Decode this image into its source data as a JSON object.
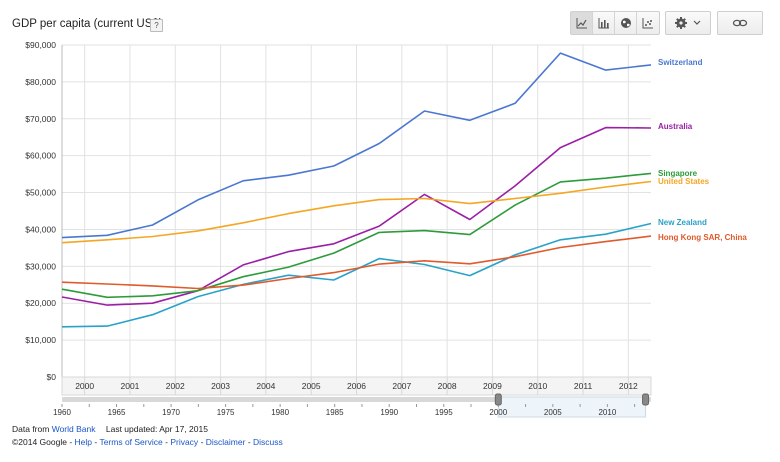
{
  "header": {
    "title": "GDP per capita (current US$)",
    "help": "?"
  },
  "toolbar": {
    "buttons": [
      {
        "name": "line-chart-button",
        "icon": "line-chart-icon",
        "active": true
      },
      {
        "name": "bar-chart-button",
        "icon": "bar-chart-icon",
        "active": false
      },
      {
        "name": "map-button",
        "icon": "globe-icon",
        "active": false
      },
      {
        "name": "scatter-button",
        "icon": "scatter-chart-icon",
        "active": false
      }
    ],
    "settings": {
      "icon": "gear-icon",
      "dropdown": "chevron-down-icon"
    },
    "link": {
      "icon": "link-icon"
    }
  },
  "chart_data": {
    "type": "line",
    "x": [
      1999.5,
      2000,
      2001,
      2002,
      2003,
      2004,
      2005,
      2006,
      2007,
      2008,
      2009,
      2010,
      2011,
      2012,
      2012.5
    ],
    "xlim": [
      1999.5,
      2012.5
    ],
    "xticks": [
      "2000",
      "2001",
      "2002",
      "2003",
      "2004",
      "2005",
      "2006",
      "2007",
      "2008",
      "2009",
      "2010",
      "2011",
      "2012"
    ],
    "ylim": [
      0,
      90000
    ],
    "yticks": [
      "$0",
      "$10,000",
      "$20,000",
      "$30,000",
      "$40,000",
      "$50,000",
      "$60,000",
      "$70,000",
      "$80,000",
      "$90,000"
    ],
    "grid": true,
    "legend": "right",
    "series": [
      {
        "name": "Switzerland",
        "color": "#4a78d0",
        "points": [
          [
            1999.5,
            37800
          ],
          [
            2000.5,
            38400
          ],
          [
            2001.5,
            41200
          ],
          [
            2002.5,
            48000
          ],
          [
            2003.5,
            53200
          ],
          [
            2004.5,
            54700
          ],
          [
            2005.5,
            57200
          ],
          [
            2006.5,
            63300
          ],
          [
            2007.5,
            72100
          ],
          [
            2008.5,
            69600
          ],
          [
            2009.5,
            74200
          ],
          [
            2010.5,
            87800
          ],
          [
            2011.5,
            83200
          ],
          [
            2012.5,
            84600
          ]
        ]
      },
      {
        "name": "Australia",
        "color": "#9b1fa6",
        "points": [
          [
            1999.5,
            21700
          ],
          [
            2000.5,
            19500
          ],
          [
            2001.5,
            20000
          ],
          [
            2002.5,
            23400
          ],
          [
            2003.5,
            30400
          ],
          [
            2004.5,
            34000
          ],
          [
            2005.5,
            36100
          ],
          [
            2006.5,
            40900
          ],
          [
            2007.5,
            49500
          ],
          [
            2008.5,
            42700
          ],
          [
            2009.5,
            51800
          ],
          [
            2010.5,
            62200
          ],
          [
            2011.5,
            67600
          ],
          [
            2012.5,
            67500
          ]
        ]
      },
      {
        "name": "Singapore",
        "color": "#2e9b3a",
        "points": [
          [
            1999.5,
            23800
          ],
          [
            2000.5,
            21600
          ],
          [
            2001.5,
            22000
          ],
          [
            2002.5,
            23400
          ],
          [
            2003.5,
            27200
          ],
          [
            2004.5,
            29800
          ],
          [
            2005.5,
            33600
          ],
          [
            2006.5,
            39200
          ],
          [
            2007.5,
            39700
          ],
          [
            2008.5,
            38600
          ],
          [
            2009.5,
            46600
          ],
          [
            2010.5,
            52900
          ],
          [
            2011.5,
            53900
          ],
          [
            2012.5,
            55200
          ]
        ]
      },
      {
        "name": "United States",
        "color": "#f5a623",
        "points": [
          [
            1999.5,
            36400
          ],
          [
            2000.5,
            37200
          ],
          [
            2001.5,
            38100
          ],
          [
            2002.5,
            39600
          ],
          [
            2003.5,
            41800
          ],
          [
            2004.5,
            44300
          ],
          [
            2005.5,
            46400
          ],
          [
            2006.5,
            48100
          ],
          [
            2007.5,
            48400
          ],
          [
            2008.5,
            47000
          ],
          [
            2009.5,
            48400
          ],
          [
            2010.5,
            49800
          ],
          [
            2011.5,
            51500
          ],
          [
            2012.5,
            53000
          ]
        ]
      },
      {
        "name": "New Zealand",
        "color": "#2aa2c8",
        "points": [
          [
            1999.5,
            13600
          ],
          [
            2000.5,
            13800
          ],
          [
            2001.5,
            16900
          ],
          [
            2002.5,
            21800
          ],
          [
            2003.5,
            25100
          ],
          [
            2004.5,
            27600
          ],
          [
            2005.5,
            26300
          ],
          [
            2006.5,
            32100
          ],
          [
            2007.5,
            30500
          ],
          [
            2008.5,
            27500
          ],
          [
            2009.5,
            33100
          ],
          [
            2010.5,
            37200
          ],
          [
            2011.5,
            38700
          ],
          [
            2012.5,
            41600
          ]
        ]
      },
      {
        "name": "Hong Kong SAR, China",
        "color": "#e05a2b",
        "points": [
          [
            1999.5,
            25700
          ],
          [
            2000.5,
            25200
          ],
          [
            2001.5,
            24700
          ],
          [
            2002.5,
            24000
          ],
          [
            2003.5,
            24900
          ],
          [
            2004.5,
            26700
          ],
          [
            2005.5,
            28300
          ],
          [
            2006.5,
            30600
          ],
          [
            2007.5,
            31500
          ],
          [
            2008.5,
            30700
          ],
          [
            2009.5,
            32600
          ],
          [
            2010.5,
            35100
          ],
          [
            2011.5,
            36700
          ],
          [
            2012.5,
            38200
          ]
        ]
      }
    ]
  },
  "timeline": {
    "start": 1960,
    "end": 2014,
    "range": [
      2000,
      2012
    ],
    "labels": [
      "1960",
      "1965",
      "1970",
      "1975",
      "1980",
      "1985",
      "1990",
      "1995",
      "2000",
      "2005",
      "2010"
    ]
  },
  "footer": {
    "data_from": "Data from",
    "source_link": "World Bank",
    "last_updated": "Last updated: Apr 17, 2015",
    "copyright": "©2014 Google",
    "sep": " - ",
    "links": [
      "Help",
      "Terms of Service",
      "Privacy",
      "Disclaimer",
      "Discuss"
    ]
  }
}
